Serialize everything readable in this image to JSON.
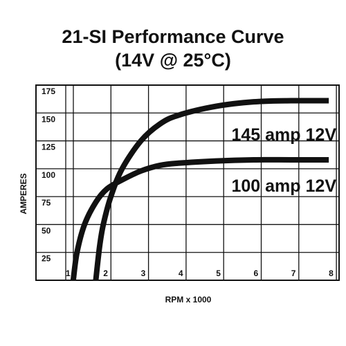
{
  "chart_data": {
    "type": "line",
    "title": "21-SI Performance Curve",
    "subtitle": "(14V @ 25°C)",
    "xlabel": "RPM x 1000",
    "ylabel": "AMPERES",
    "xlim": [
      1,
      8
    ],
    "ylim": [
      0,
      175
    ],
    "x_ticks": [
      "1",
      "2",
      "3",
      "4",
      "5",
      "6",
      "7",
      "8"
    ],
    "y_ticks": [
      "25",
      "50",
      "75",
      "100",
      "125",
      "150",
      "175"
    ],
    "grid": true,
    "series": [
      {
        "name": "145 amp 12V",
        "x": [
          1.8,
          1.9,
          2.0,
          2.2,
          2.5,
          3.0,
          3.5,
          4.0,
          5.0,
          6.0,
          7.0,
          8.0
        ],
        "y": [
          0,
          30,
          50,
          75,
          100,
          125,
          140,
          148,
          156,
          160,
          161,
          161
        ]
      },
      {
        "name": "100 amp 12V",
        "x": [
          1.2,
          1.3,
          1.5,
          1.8,
          2.1,
          2.5,
          3.0,
          3.5,
          4.0,
          5.0,
          6.0,
          7.0,
          8.0
        ],
        "y": [
          0,
          25,
          50,
          70,
          82,
          90,
          98,
          103,
          105,
          107,
          108,
          108,
          108
        ]
      }
    ]
  }
}
